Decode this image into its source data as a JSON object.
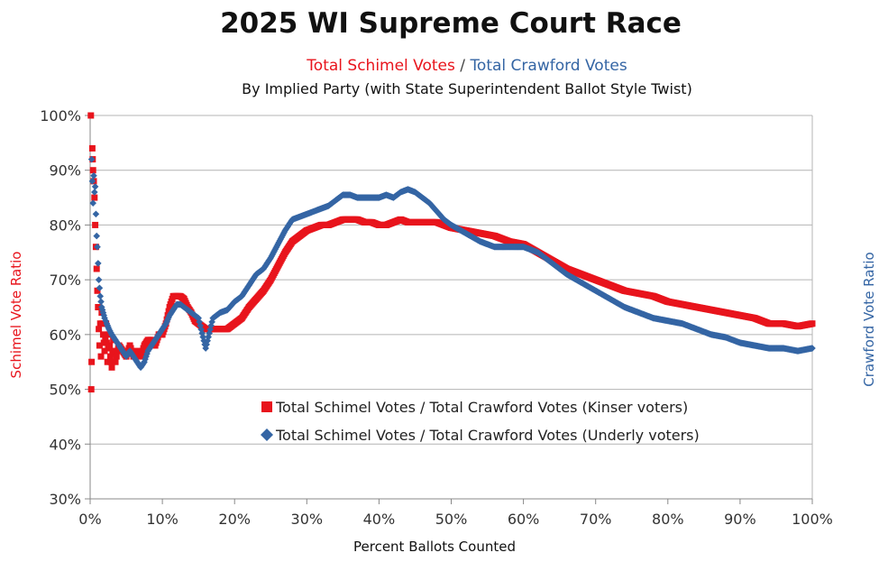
{
  "chart_data": {
    "type": "scatter",
    "title": "2025 WI Supreme Court Race",
    "subtitle": {
      "part1": "Total Schimel Votes",
      "separator": " / ",
      "part2": "Total Crawford Votes",
      "line2": "By Implied Party (with State Superintendent Ballot Style Twist)"
    },
    "xlabel": "Percent Ballots Counted",
    "ylabel_left": "Schimel Vote Ratio",
    "ylabel_right": "Crawford Vote Ratio",
    "xlim": [
      0,
      100
    ],
    "ylim": [
      30,
      100
    ],
    "x_ticks": [
      "0%",
      "10%",
      "20%",
      "30%",
      "40%",
      "50%",
      "60%",
      "70%",
      "80%",
      "90%",
      "100%"
    ],
    "y_ticks": [
      "30%",
      "40%",
      "50%",
      "60%",
      "70%",
      "80%",
      "90%",
      "100%"
    ],
    "grid": true,
    "legend_position": "center-left inside plot",
    "colors": {
      "kinser": "#e8141c",
      "underly": "#3465a4",
      "grid": "#b4b4b4"
    },
    "series": [
      {
        "name": "Total Schimel Votes / Total Crawford Votes (Kinser voters)",
        "marker": "square",
        "points": [
          [
            0.1,
            100
          ],
          [
            0.15,
            50
          ],
          [
            0.2,
            55
          ],
          [
            0.3,
            94
          ],
          [
            0.35,
            92
          ],
          [
            0.4,
            90
          ],
          [
            0.5,
            88
          ],
          [
            0.6,
            85
          ],
          [
            0.7,
            80
          ],
          [
            0.8,
            76
          ],
          [
            0.9,
            72
          ],
          [
            1.0,
            68
          ],
          [
            1.1,
            65
          ],
          [
            1.2,
            61
          ],
          [
            1.3,
            58
          ],
          [
            1.4,
            62
          ],
          [
            1.5,
            56
          ],
          [
            1.6,
            64
          ],
          [
            1.8,
            60
          ],
          [
            2.0,
            57
          ],
          [
            2.2,
            62
          ],
          [
            2.4,
            55
          ],
          [
            2.6,
            60
          ],
          [
            2.8,
            56
          ],
          [
            3.0,
            54
          ],
          [
            3.2,
            59
          ],
          [
            3.5,
            55
          ],
          [
            3.8,
            57
          ],
          [
            4.0,
            58
          ],
          [
            4.5,
            57
          ],
          [
            5.0,
            56
          ],
          [
            5.5,
            58
          ],
          [
            6.0,
            56
          ],
          [
            6.5,
            57
          ],
          [
            7.0,
            56
          ],
          [
            7.5,
            58
          ],
          [
            8.0,
            59
          ],
          [
            8.5,
            59
          ],
          [
            9.0,
            58
          ],
          [
            9.5,
            60
          ],
          [
            10.0,
            60
          ],
          [
            10.5,
            62
          ],
          [
            11.0,
            65
          ],
          [
            11.5,
            67
          ],
          [
            12.0,
            67
          ],
          [
            12.5,
            67
          ],
          [
            13.0,
            66.5
          ],
          [
            13.5,
            65
          ],
          [
            14.0,
            64
          ],
          [
            14.5,
            62.5
          ],
          [
            15.0,
            62
          ],
          [
            16.0,
            61
          ],
          [
            17.0,
            61
          ],
          [
            18.0,
            61
          ],
          [
            19.0,
            61
          ],
          [
            20.0,
            62
          ],
          [
            21.0,
            63
          ],
          [
            22.0,
            65
          ],
          [
            23.0,
            66.5
          ],
          [
            24.0,
            68
          ],
          [
            25.0,
            70
          ],
          [
            26.0,
            72.5
          ],
          [
            27.0,
            75
          ],
          [
            28.0,
            77
          ],
          [
            29.0,
            78
          ],
          [
            30.0,
            79
          ],
          [
            31.0,
            79.5
          ],
          [
            32.0,
            80
          ],
          [
            33.0,
            80
          ],
          [
            34.0,
            80.5
          ],
          [
            35.0,
            81
          ],
          [
            36.0,
            81
          ],
          [
            37.0,
            81
          ],
          [
            38.0,
            80.5
          ],
          [
            39.0,
            80.5
          ],
          [
            40.0,
            80
          ],
          [
            41.0,
            80
          ],
          [
            42.0,
            80.5
          ],
          [
            43.0,
            81
          ],
          [
            44.0,
            80.5
          ],
          [
            45.0,
            80.5
          ],
          [
            46.0,
            80.5
          ],
          [
            47.0,
            80.5
          ],
          [
            48.0,
            80.5
          ],
          [
            49.0,
            80
          ],
          [
            50.0,
            79.5
          ],
          [
            52.0,
            79
          ],
          [
            54.0,
            78.5
          ],
          [
            56.0,
            78
          ],
          [
            58.0,
            77
          ],
          [
            60.0,
            76.5
          ],
          [
            62.0,
            75
          ],
          [
            64.0,
            73.5
          ],
          [
            66.0,
            72
          ],
          [
            68.0,
            71
          ],
          [
            70.0,
            70
          ],
          [
            72.0,
            69
          ],
          [
            74.0,
            68
          ],
          [
            76.0,
            67.5
          ],
          [
            78.0,
            67
          ],
          [
            80.0,
            66
          ],
          [
            82.0,
            65.5
          ],
          [
            84.0,
            65
          ],
          [
            86.0,
            64.5
          ],
          [
            88.0,
            64
          ],
          [
            90.0,
            63.5
          ],
          [
            92.0,
            63
          ],
          [
            94.0,
            62
          ],
          [
            96.0,
            62
          ],
          [
            98.0,
            61.5
          ],
          [
            100.0,
            62
          ]
        ]
      },
      {
        "name": "Total Schimel Votes / Total Crawford Votes (Underly voters)",
        "marker": "diamond",
        "points": [
          [
            0.2,
            92
          ],
          [
            0.3,
            88
          ],
          [
            0.4,
            84
          ],
          [
            0.5,
            89
          ],
          [
            0.6,
            86
          ],
          [
            0.7,
            87
          ],
          [
            0.8,
            82
          ],
          [
            0.9,
            78
          ],
          [
            1.0,
            76
          ],
          [
            1.1,
            73
          ],
          [
            1.2,
            70
          ],
          [
            1.4,
            67
          ],
          [
            1.6,
            65
          ],
          [
            1.8,
            64
          ],
          [
            2.0,
            63
          ],
          [
            2.3,
            62
          ],
          [
            2.6,
            61
          ],
          [
            3.0,
            60
          ],
          [
            3.5,
            59
          ],
          [
            4.0,
            58
          ],
          [
            4.5,
            57
          ],
          [
            5.0,
            56
          ],
          [
            5.5,
            57
          ],
          [
            6.0,
            56
          ],
          [
            6.5,
            55
          ],
          [
            7.0,
            54
          ],
          [
            7.5,
            55
          ],
          [
            8.0,
            57
          ],
          [
            8.5,
            58
          ],
          [
            9.0,
            59
          ],
          [
            9.5,
            60
          ],
          [
            10.0,
            61
          ],
          [
            10.5,
            62
          ],
          [
            11.0,
            63.5
          ],
          [
            11.5,
            64.5
          ],
          [
            12.0,
            65.5
          ],
          [
            12.5,
            65.5
          ],
          [
            13.0,
            65
          ],
          [
            13.5,
            64.5
          ],
          [
            14.0,
            64
          ],
          [
            14.5,
            63.5
          ],
          [
            15.0,
            63
          ],
          [
            16.0,
            57.5
          ],
          [
            17.0,
            63
          ],
          [
            18.0,
            64
          ],
          [
            19.0,
            64.5
          ],
          [
            20.0,
            66
          ],
          [
            21.0,
            67
          ],
          [
            22.0,
            69
          ],
          [
            23.0,
            71
          ],
          [
            24.0,
            72
          ],
          [
            25.0,
            74
          ],
          [
            26.0,
            76.5
          ],
          [
            27.0,
            79
          ],
          [
            28.0,
            81
          ],
          [
            29.0,
            81.5
          ],
          [
            30.0,
            82
          ],
          [
            31.0,
            82.5
          ],
          [
            32.0,
            83
          ],
          [
            33.0,
            83.5
          ],
          [
            34.0,
            84.5
          ],
          [
            35.0,
            85.5
          ],
          [
            36.0,
            85.5
          ],
          [
            37.0,
            85
          ],
          [
            38.0,
            85
          ],
          [
            39.0,
            85
          ],
          [
            40.0,
            85
          ],
          [
            41.0,
            85.5
          ],
          [
            42.0,
            85
          ],
          [
            43.0,
            86
          ],
          [
            44.0,
            86.5
          ],
          [
            45.0,
            86
          ],
          [
            46.0,
            85
          ],
          [
            47.0,
            84
          ],
          [
            48.0,
            82.5
          ],
          [
            49.0,
            81
          ],
          [
            50.0,
            80
          ],
          [
            52.0,
            78.5
          ],
          [
            54.0,
            77
          ],
          [
            56.0,
            76
          ],
          [
            58.0,
            76
          ],
          [
            60.0,
            76
          ],
          [
            62.0,
            75
          ],
          [
            64.0,
            73
          ],
          [
            66.0,
            71
          ],
          [
            68.0,
            69.5
          ],
          [
            70.0,
            68
          ],
          [
            72.0,
            66.5
          ],
          [
            74.0,
            65
          ],
          [
            76.0,
            64
          ],
          [
            78.0,
            63
          ],
          [
            80.0,
            62.5
          ],
          [
            82.0,
            62
          ],
          [
            84.0,
            61
          ],
          [
            86.0,
            60
          ],
          [
            88.0,
            59.5
          ],
          [
            90.0,
            58.5
          ],
          [
            92.0,
            58
          ],
          [
            94.0,
            57.5
          ],
          [
            96.0,
            57.5
          ],
          [
            98.0,
            57
          ],
          [
            100.0,
            57.5
          ]
        ]
      }
    ]
  }
}
